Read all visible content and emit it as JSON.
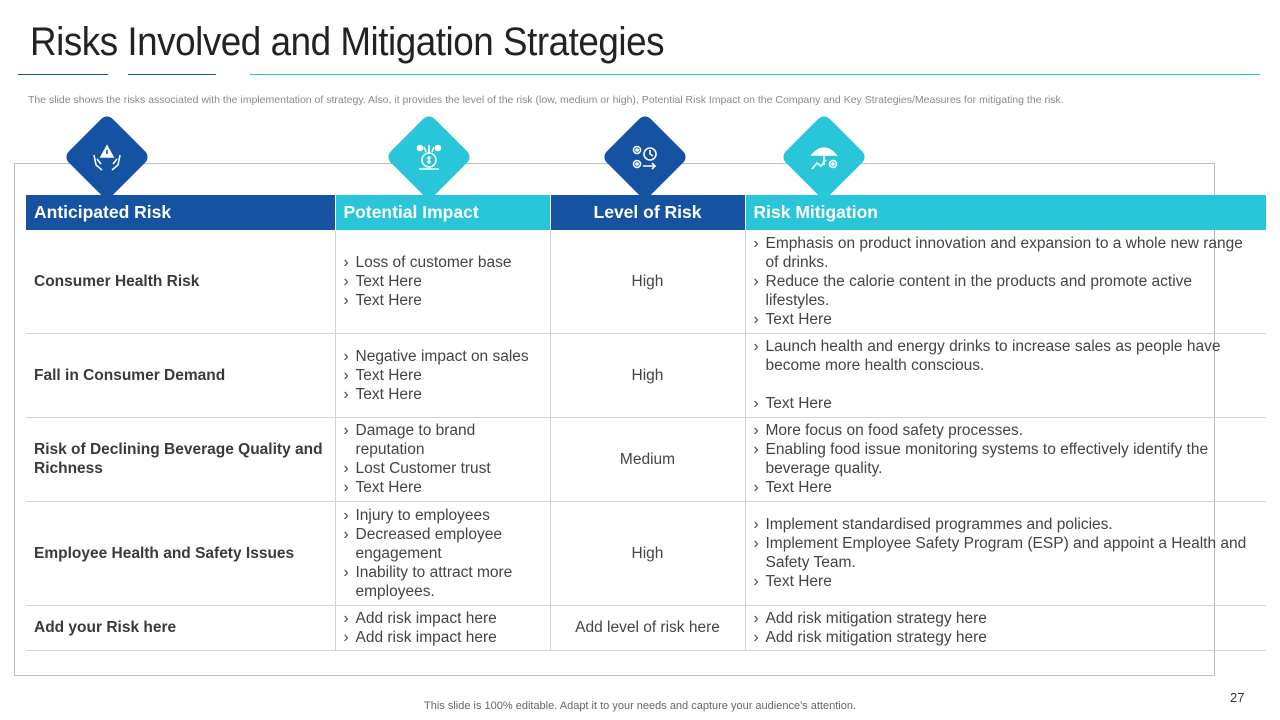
{
  "slide": {
    "title": "Risks Involved and Mitigation Strategies",
    "subtitle": "The slide shows the risks associated with the implementation of strategy. Also, it provides the level of the risk (low, medium or high), Potential Risk Impact on the Company and Key Strategies/Measures for mitigating the risk.",
    "footer": "This slide is 100% editable. Adapt it to your needs and capture your audience's attention.",
    "page_number": "27"
  },
  "colors": {
    "dark_blue": "#1552a1",
    "cyan": "#29c5d9"
  },
  "icons": [
    "hands-warning-icon",
    "money-tree-icon",
    "gears-clock-icon",
    "umbrella-protection-icon"
  ],
  "table": {
    "headers": [
      "Anticipated Risk",
      "Potential Impact",
      "Level of Risk",
      "Risk Mitigation"
    ],
    "rows": [
      {
        "risk": "Consumer Health Risk",
        "impact": [
          "Loss of customer base",
          "Text Here",
          "Text Here"
        ],
        "level": "High",
        "mitigation": [
          "Emphasis on product innovation and expansion to a whole new range of drinks.",
          "Reduce the calorie content in the products and promote active lifestyles.",
          "Text Here"
        ]
      },
      {
        "risk": "Fall in Consumer Demand",
        "impact": [
          "Negative impact on sales",
          "Text Here",
          "Text Here"
        ],
        "level": "High",
        "mitigation": [
          "Launch health and energy drinks to increase sales as people have become more health conscious.",
          "Text Here"
        ]
      },
      {
        "risk": "Risk of Declining Beverage Quality and Richness",
        "impact": [
          "Damage to brand reputation",
          "Lost Customer trust",
          "Text Here"
        ],
        "level": "Medium",
        "mitigation": [
          "More focus on food safety processes.",
          "Enabling food issue monitoring systems to effectively identify the beverage quality.",
          "Text Here"
        ]
      },
      {
        "risk": "Employee Health and Safety Issues",
        "impact": [
          "Injury to employees",
          "Decreased employee engagement",
          "Inability to attract more employees."
        ],
        "level": "High",
        "mitigation": [
          "Implement standardised programmes and policies.",
          "Implement Employee Safety Program (ESP) and appoint a Health and Safety Team.",
          "Text Here"
        ]
      },
      {
        "risk": "Add your Risk here",
        "impact": [
          "Add risk impact here",
          "Add risk impact here"
        ],
        "level": "Add level of risk here",
        "mitigation": [
          "Add risk mitigation strategy here",
          "Add risk mitigation strategy here"
        ]
      }
    ]
  }
}
